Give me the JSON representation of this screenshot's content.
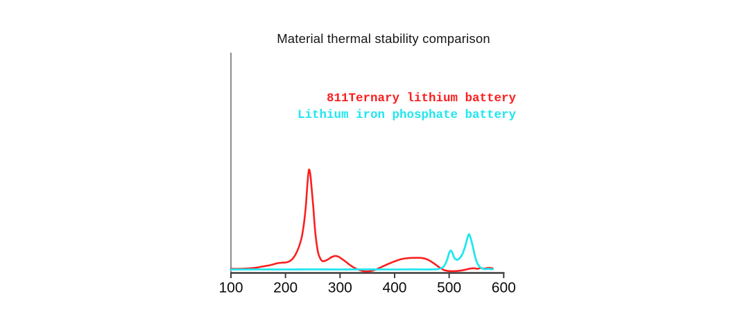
{
  "chart": {
    "title": "Material thermal stability comparison"
  },
  "chart_data": {
    "type": "line",
    "title": "Material thermal stability comparison",
    "xlabel": "",
    "ylabel": "",
    "xlim": [
      100,
      600
    ],
    "ylim": [
      -5,
      108
    ],
    "x_ticks": [
      100,
      200,
      300,
      400,
      500,
      600
    ],
    "y_ticks": [],
    "grid": false,
    "legend_position": "upper-right-inside",
    "y_unit": "arbitrary heat-flow units (red main peak normalized to 100)",
    "colors": {
      "y_axis": "#8c8c8c",
      "x_axis": "#3d3d3d",
      "tick_label": "#0a0a0a",
      "title": "#161616",
      "background": "#ffffff"
    },
    "series": [
      {
        "name": "811Ternary lithium battery",
        "color": "#fa1f1f",
        "stroke_width": 2.6,
        "points": [
          [
            100,
            0.7
          ],
          [
            112,
            0.6
          ],
          [
            124,
            0.8
          ],
          [
            136,
            1.2
          ],
          [
            148,
            2.0
          ],
          [
            158,
            3.0
          ],
          [
            168,
            3.9
          ],
          [
            178,
            5.2
          ],
          [
            186,
            6.3
          ],
          [
            194,
            6.8
          ],
          [
            201,
            7.0
          ],
          [
            207,
            8.1
          ],
          [
            213,
            10.7
          ],
          [
            219,
            15.6
          ],
          [
            225,
            23.2
          ],
          [
            230,
            33.0
          ],
          [
            234,
            46.7
          ],
          [
            237,
            62.0
          ],
          [
            240,
            84.0
          ],
          [
            242,
            96.5
          ],
          [
            243.5,
            100
          ],
          [
            245.5,
            95.0
          ],
          [
            248,
            81.0
          ],
          [
            251,
            62.0
          ],
          [
            254,
            41.0
          ],
          [
            257,
            26.0
          ],
          [
            260,
            16.3
          ],
          [
            264,
            10.7
          ],
          [
            268,
            8.3
          ],
          [
            273,
            8.8
          ],
          [
            279,
            10.5
          ],
          [
            285,
            12.5
          ],
          [
            291,
            13.5
          ],
          [
            297,
            12.8
          ],
          [
            303,
            10.7
          ],
          [
            310,
            8.0
          ],
          [
            318,
            4.5
          ],
          [
            326,
            1.7
          ],
          [
            334,
            -0.3
          ],
          [
            342,
            -1.6
          ],
          [
            352,
            -1.9
          ],
          [
            361,
            -1.0
          ],
          [
            370,
            1.0
          ],
          [
            380,
            3.5
          ],
          [
            390,
            5.9
          ],
          [
            400,
            8.1
          ],
          [
            410,
            10.0
          ],
          [
            420,
            11.1
          ],
          [
            432,
            11.6
          ],
          [
            444,
            11.7
          ],
          [
            452,
            11.3
          ],
          [
            460,
            10.0
          ],
          [
            468,
            7.6
          ],
          [
            476,
            4.5
          ],
          [
            484,
            1.4
          ],
          [
            491,
            -0.7
          ],
          [
            500,
            -1.6
          ],
          [
            510,
            -1.7
          ],
          [
            520,
            -1.2
          ],
          [
            530,
            -0.2
          ],
          [
            538,
            0.8
          ],
          [
            546,
            1.2
          ],
          [
            552,
            0.7
          ],
          [
            558,
            1.4
          ],
          [
            564,
            0.9
          ],
          [
            572,
            1.6
          ],
          [
            580,
            1.2
          ]
        ]
      },
      {
        "name": "Lithium iron phosphate battery",
        "color": "#20e6f0",
        "stroke_width": 2.8,
        "points": [
          [
            100,
            0.0
          ],
          [
            150,
            0.1
          ],
          [
            200,
            0.0
          ],
          [
            250,
            0.1
          ],
          [
            300,
            0.0
          ],
          [
            350,
            0.1
          ],
          [
            400,
            0.0
          ],
          [
            440,
            0.1
          ],
          [
            460,
            0.0
          ],
          [
            470,
            0.1
          ],
          [
            478,
            0.3
          ],
          [
            484,
            1.0
          ],
          [
            489,
            2.5
          ],
          [
            493,
            5.5
          ],
          [
            497,
            11.0
          ],
          [
            500,
            16.5
          ],
          [
            503,
            19.0
          ],
          [
            506,
            16.5
          ],
          [
            509,
            12.0
          ],
          [
            512,
            10.2
          ],
          [
            515,
            9.7
          ],
          [
            519,
            11.2
          ],
          [
            524,
            15.0
          ],
          [
            529,
            22.5
          ],
          [
            533,
            30.5
          ],
          [
            536,
            35.3
          ],
          [
            539,
            32.0
          ],
          [
            543,
            24.0
          ],
          [
            547,
            14.0
          ],
          [
            551,
            7.0
          ],
          [
            555,
            3.2
          ],
          [
            560,
            1.2
          ],
          [
            566,
            0.3
          ],
          [
            572,
            0.7
          ],
          [
            576,
            0.3
          ],
          [
            580,
            0.5
          ]
        ]
      }
    ]
  }
}
